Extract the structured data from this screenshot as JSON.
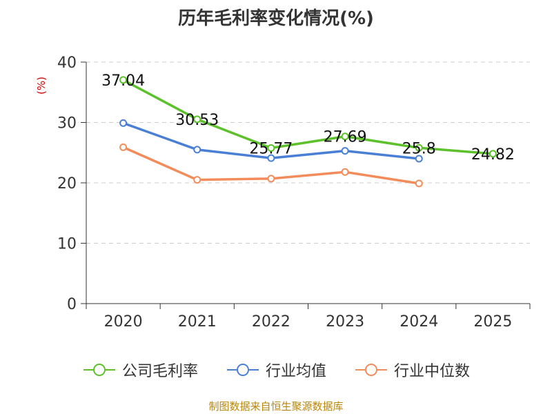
{
  "chart_data": {
    "type": "line",
    "title": "历年毛利率变化情况(%)",
    "ylabel": "(%)",
    "categories": [
      "2020",
      "2021",
      "2022",
      "2023",
      "2024",
      "2025"
    ],
    "ylim": [
      0,
      40
    ],
    "yticks": [
      0,
      10,
      20,
      30,
      40
    ],
    "series": [
      {
        "name": "公司毛利率",
        "color": "#5cc12a",
        "values": [
          37.04,
          30.53,
          25.77,
          27.69,
          25.8,
          24.82
        ],
        "labels": [
          "37.04",
          "30.53",
          "25.77",
          "27.69",
          "25.8",
          "24.82"
        ]
      },
      {
        "name": "行业均值",
        "color": "#4a7fd6",
        "values": [
          29.9,
          25.5,
          24.1,
          25.3,
          24.0,
          null
        ]
      },
      {
        "name": "行业中位数",
        "color": "#f28c5a",
        "values": [
          25.9,
          20.5,
          20.7,
          21.8,
          19.9,
          null
        ]
      }
    ]
  },
  "source": "制图数据来自恒生聚源数据库"
}
